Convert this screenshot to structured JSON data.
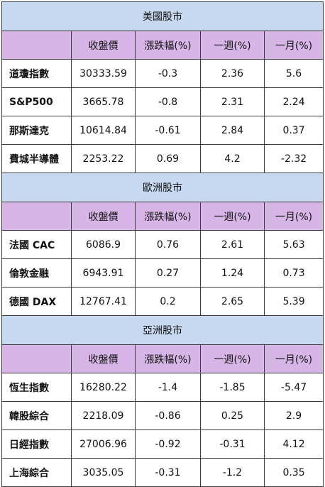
{
  "sections": [
    {
      "title": "美國股市",
      "headers": [
        "",
        "收盤價",
        "漲跌幅(%)",
        "一週(%)",
        "一月(%)"
      ],
      "rows": [
        [
          "道瓊指數",
          "30333.59",
          "-0.3",
          "2.36",
          "5.6"
        ],
        [
          "S&P500",
          "3665.78",
          "-0.8",
          "2.31",
          "2.24"
        ],
        [
          "那斯達克",
          "10614.84",
          "-0.61",
          "2.84",
          "0.37"
        ],
        [
          "費城半導體",
          "2253.22",
          "0.69",
          "4.2",
          "-2.32"
        ]
      ]
    },
    {
      "title": "歐洲股市",
      "headers": [
        "",
        "收盤價",
        "漲跌幅(%)",
        "一週(%)",
        "一月(%)"
      ],
      "rows": [
        [
          "法國 CAC",
          "6086.9",
          "0.76",
          "2.61",
          "5.63"
        ],
        [
          "倫敦金融",
          "6943.91",
          "0.27",
          "1.24",
          "0.73"
        ],
        [
          "德國 DAX",
          "12767.41",
          "0.2",
          "2.65",
          "5.39"
        ]
      ]
    },
    {
      "title": "亞洲股市",
      "headers": [
        "",
        "收盤價",
        "漲跌幅(%)",
        "一週(%)",
        "一月(%)"
      ],
      "rows": [
        [
          "恆生指數",
          "16280.22",
          "-1.4",
          "-1.85",
          "-5.47"
        ],
        [
          "韓股綜合",
          "2218.09",
          "-0.86",
          "0.25",
          "2.9"
        ],
        [
          "日經指數",
          "27006.96",
          "-0.92",
          "-0.31",
          "4.12"
        ],
        [
          "上海綜合",
          "3035.05",
          "-0.31",
          "-1.2",
          "0.35"
        ]
      ]
    }
  ]
}
